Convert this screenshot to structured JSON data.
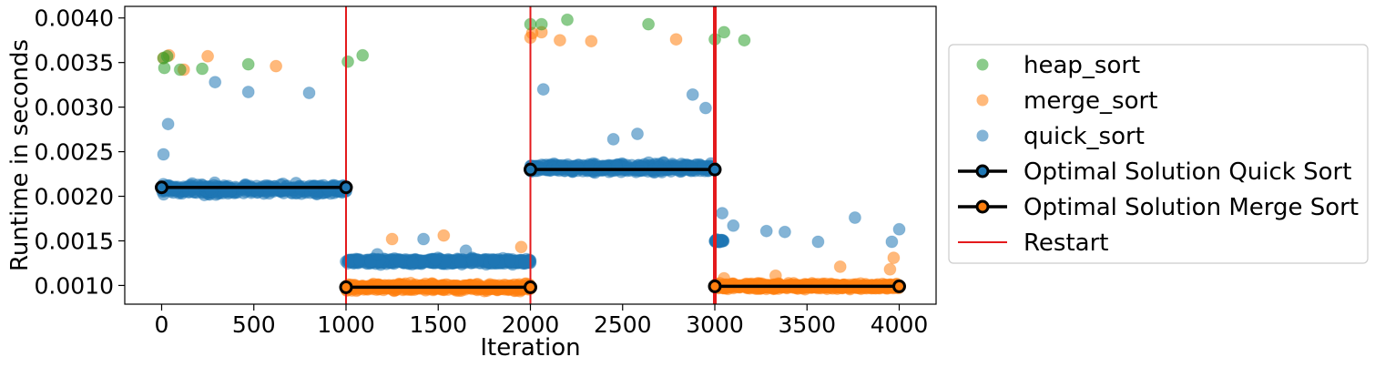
{
  "chart_data": {
    "type": "scatter",
    "xlabel": "Iteration",
    "ylabel": "Runtime in seconds",
    "xlim": [
      -200,
      4200
    ],
    "ylim": [
      0.00079,
      0.00413
    ],
    "xticks": [
      0,
      500,
      1000,
      1500,
      2000,
      2500,
      3000,
      3500,
      4000
    ],
    "xtick_labels": [
      "0",
      "500",
      "1000",
      "1500",
      "2000",
      "2500",
      "3000",
      "3500",
      "4000"
    ],
    "yticks": [
      0.001,
      0.0015,
      0.002,
      0.0025,
      0.003,
      0.0035,
      0.004
    ],
    "ytick_labels": [
      "0.0010",
      "0.0015",
      "0.0020",
      "0.0025",
      "0.0030",
      "0.0035",
      "0.0040"
    ],
    "grid": false,
    "legend_position": "outside-right",
    "series": [
      {
        "name": "heap_sort",
        "kind": "scatter",
        "color": "#2ca02c",
        "points": [
          [
            10,
            0.00355
          ],
          [
            15,
            0.00344
          ],
          [
            30,
            0.00357
          ],
          [
            100,
            0.00342
          ],
          [
            220,
            0.00343
          ],
          [
            470,
            0.00348
          ],
          [
            1010,
            0.00351
          ],
          [
            1090,
            0.00358
          ],
          [
            2000,
            0.00393
          ],
          [
            2060,
            0.00393
          ],
          [
            2200,
            0.00398
          ],
          [
            2640,
            0.00393
          ],
          [
            3000,
            0.00376
          ],
          [
            3050,
            0.00384
          ],
          [
            3160,
            0.00375
          ]
        ]
      },
      {
        "name": "merge_sort",
        "kind": "scatter",
        "color": "#ff7f0e",
        "points": [
          [
            10,
            0.00355
          ],
          [
            40,
            0.00358
          ],
          [
            120,
            0.00342
          ],
          [
            250,
            0.00357
          ],
          [
            620,
            0.00346
          ],
          [
            1250,
            0.00152
          ],
          [
            1530,
            0.00156
          ],
          [
            1950,
            0.00143
          ],
          [
            2000,
            0.00378
          ],
          [
            2010,
            0.00383
          ],
          [
            2060,
            0.00384
          ],
          [
            2160,
            0.00375
          ],
          [
            2330,
            0.00374
          ],
          [
            2790,
            0.00376
          ],
          [
            3050,
            0.00108
          ],
          [
            3330,
            0.00111
          ],
          [
            3680,
            0.00121
          ],
          [
            3950,
            0.00118
          ],
          [
            3970,
            0.00131
          ]
        ]
      },
      {
        "name": "quick_sort",
        "kind": "scatter",
        "color": "#1f77b4",
        "points": [
          [
            10,
            0.00247
          ],
          [
            35,
            0.00281
          ],
          [
            290,
            0.00328
          ],
          [
            470,
            0.00317
          ],
          [
            800,
            0.00316
          ],
          [
            1170,
            0.00135
          ],
          [
            1420,
            0.00152
          ],
          [
            1650,
            0.00139
          ],
          [
            1890,
            0.00128
          ],
          [
            2070,
            0.0032
          ],
          [
            2450,
            0.00264
          ],
          [
            2580,
            0.0027
          ],
          [
            2880,
            0.00314
          ],
          [
            2950,
            0.00299
          ],
          [
            3040,
            0.00181
          ],
          [
            3100,
            0.00167
          ],
          [
            3280,
            0.00161
          ],
          [
            3380,
            0.0016
          ],
          [
            3560,
            0.00149
          ],
          [
            3760,
            0.00176
          ],
          [
            3960,
            0.00149
          ],
          [
            4000,
            0.00163
          ]
        ],
        "clusters": [
          {
            "x": [
              0,
              1000
            ],
            "center": 0.00208,
            "spread": 7e-05
          },
          {
            "x": [
              1000,
              2000
            ],
            "center": 0.00127,
            "spread": 4e-05
          },
          {
            "x": [
              2000,
              3000
            ],
            "center": 0.00232,
            "spread": 6e-05
          },
          {
            "x": [
              3000,
              3050
            ],
            "center": 0.0015,
            "spread": 2e-05
          }
        ]
      },
      {
        "name": "Optimal Solution Quick Sort",
        "kind": "line",
        "color": "#000000",
        "marker_fill": "#1f77b4",
        "segments": [
          [
            [
              0,
              0.0021
            ],
            [
              1000,
              0.0021
            ]
          ],
          [
            [
              2000,
              0.0023
            ],
            [
              3000,
              0.0023
            ]
          ]
        ]
      },
      {
        "name": "Optimal Solution Merge Sort",
        "kind": "line",
        "color": "#000000",
        "marker_fill": "#ff7f0e",
        "segments": [
          [
            [
              1000,
              0.00098
            ],
            [
              2000,
              0.00098
            ]
          ],
          [
            [
              3000,
              0.00099
            ],
            [
              4000,
              0.00099
            ]
          ]
        ]
      },
      {
        "name": "Restart",
        "kind": "vline",
        "color": "#e41a1c",
        "x": [
          1000,
          2000,
          3000
        ]
      }
    ],
    "merge_sort_clusters": [
      {
        "x": [
          1000,
          2000
        ],
        "center": 0.00098,
        "spread": 5e-05
      },
      {
        "x": [
          3000,
          4000
        ],
        "center": 0.00099,
        "spread": 4e-05
      }
    ]
  }
}
